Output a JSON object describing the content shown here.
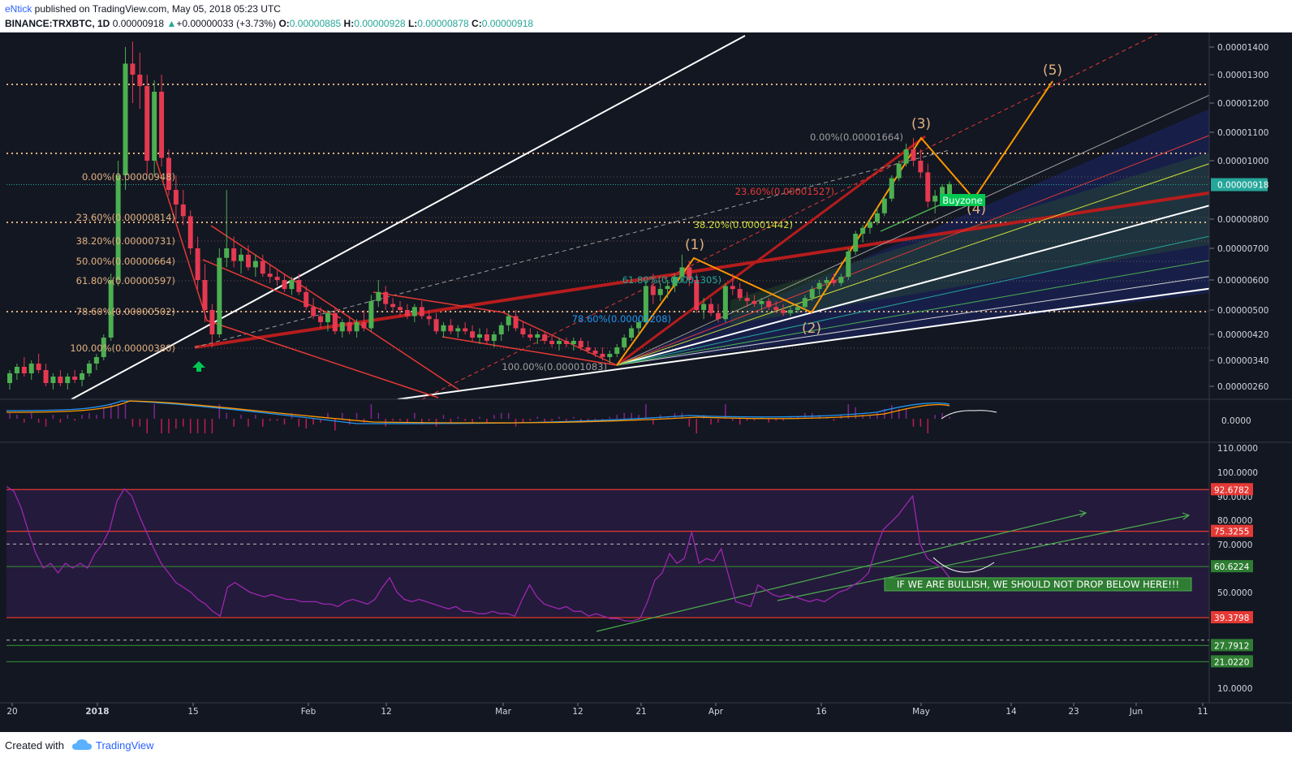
{
  "header": {
    "user": "eNtick",
    "published_text": " published on TradingView.com, May 05, 2018 05:23 UTC",
    "symbol": "BINANCE:TRXBTC, 1D",
    "last_price": "0.00000918",
    "change": "+0.00000033 (+3.73%)",
    "o_label": "O:",
    "o_val": "0.00000885",
    "h_label": "H:",
    "h_val": "0.00000928",
    "l_label": "L:",
    "l_val": "0.00000878",
    "c_label": "C:",
    "c_val": "0.00000918"
  },
  "footer": {
    "created_with": "Created with",
    "brand": "TradingView"
  },
  "chart_data": [
    {
      "type": "candlestick",
      "name": "price",
      "y_axis_ticks": [
        "0.00001400",
        "0.00001300",
        "0.00001200",
        "0.00001100",
        "0.00001000",
        "0.00000800",
        "0.00000700",
        "0.00000600",
        "0.00000500",
        "0.00000420",
        "0.00000340",
        "0.00000260"
      ],
      "current_price_label": "0.00000918",
      "fib_labels_left": [
        "0.00%(0.00000948)",
        "23.60%(0.00000814)",
        "38.20%(0.00000731)",
        "50.00%(0.00000664)",
        "61.80%(0.00000597)",
        "78.60%(0.00000502)",
        "100.00%(0.00000380)"
      ],
      "fib_labels_right": [
        "0.00%(0.00001664)",
        "23.60%(0.00001527)",
        "38.20%(0.00001442)",
        "61.80%(0.00001305)",
        "78.60%(0.00001208)",
        "100.00%(0.00001083)"
      ],
      "wave_labels": [
        "(1)",
        "(2)",
        "(3)",
        "(4)",
        "(5)"
      ],
      "annotations": [
        "Buyzone"
      ],
      "x_axis_ticks": [
        "20",
        "2018",
        "15",
        "Feb",
        "12",
        "Mar",
        "12",
        "21",
        "Apr",
        "16",
        "May",
        "14",
        "23",
        "Jun",
        "11"
      ],
      "candles": [
        {
          "o": 2.7e-06,
          "h": 3.1e-06,
          "l": 2.5e-06,
          "c": 3e-06
        },
        {
          "o": 3e-06,
          "h": 3.3e-06,
          "l": 2.8e-06,
          "c": 3.2e-06
        },
        {
          "o": 3.2e-06,
          "h": 3.5e-06,
          "l": 2.9e-06,
          "c": 3e-06
        },
        {
          "o": 3e-06,
          "h": 3.4e-06,
          "l": 2.8e-06,
          "c": 3.3e-06
        },
        {
          "o": 3.3e-06,
          "h": 3.6e-06,
          "l": 3e-06,
          "c": 3.1e-06
        },
        {
          "o": 3.1e-06,
          "h": 3.3e-06,
          "l": 2.6e-06,
          "c": 2.7e-06
        },
        {
          "o": 2.7e-06,
          "h": 3e-06,
          "l": 2.5e-06,
          "c": 2.9e-06
        },
        {
          "o": 2.9e-06,
          "h": 3.1e-06,
          "l": 2.6e-06,
          "c": 2.7e-06
        },
        {
          "o": 2.7e-06,
          "h": 3e-06,
          "l": 2.5e-06,
          "c": 2.9e-06
        },
        {
          "o": 2.9e-06,
          "h": 3.1e-06,
          "l": 2.7e-06,
          "c": 2.8e-06
        },
        {
          "o": 2.8e-06,
          "h": 3.1e-06,
          "l": 2.6e-06,
          "c": 3e-06
        },
        {
          "o": 3e-06,
          "h": 3.4e-06,
          "l": 2.9e-06,
          "c": 3.3e-06
        },
        {
          "o": 3.3e-06,
          "h": 3.6e-06,
          "l": 3.1e-06,
          "c": 3.5e-06
        },
        {
          "o": 3.5e-06,
          "h": 4.2e-06,
          "l": 3.4e-06,
          "c": 4.1e-06
        },
        {
          "o": 4.1e-06,
          "h": 6.2e-06,
          "l": 4e-06,
          "c": 6e-06
        },
        {
          "o": 6e-06,
          "h": 1e-05,
          "l": 5.8e-06,
          "c": 9.5e-06
        },
        {
          "o": 9.5e-06,
          "h": 1.4e-05,
          "l": 9e-06,
          "c": 1.34e-05
        },
        {
          "o": 1.34e-05,
          "h": 1.42e-05,
          "l": 1.2e-05,
          "c": 1.3e-05
        },
        {
          "o": 1.3e-05,
          "h": 1.38e-05,
          "l": 1.18e-05,
          "c": 1.26e-05
        },
        {
          "o": 1.26e-05,
          "h": 1.3e-05,
          "l": 9.5e-06,
          "c": 1e-05
        },
        {
          "o": 1e-05,
          "h": 1.28e-05,
          "l": 9.5e-06,
          "c": 1.24e-05
        },
        {
          "o": 1.24e-05,
          "h": 1.3e-05,
          "l": 9.8e-06,
          "c": 1.01e-05
        },
        {
          "o": 1.01e-05,
          "h": 1.04e-05,
          "l": 8.8e-06,
          "c": 9e-06
        },
        {
          "o": 9e-06,
          "h": 9.5e-06,
          "l": 8e-06,
          "c": 8.5e-06
        },
        {
          "o": 8.5e-06,
          "h": 9e-06,
          "l": 7.8e-06,
          "c": 8.1e-06
        },
        {
          "o": 8.1e-06,
          "h": 8.3e-06,
          "l": 6.8e-06,
          "c": 7e-06
        },
        {
          "o": 7e-06,
          "h": 7.4e-06,
          "l": 5.7e-06,
          "c": 6e-06
        },
        {
          "o": 6e-06,
          "h": 6.5e-06,
          "l": 4.6e-06,
          "c": 5e-06
        },
        {
          "o": 5e-06,
          "h": 5.2e-06,
          "l": 3.8e-06,
          "c": 4.2e-06
        },
        {
          "o": 4.2e-06,
          "h": 7e-06,
          "l": 4.1e-06,
          "c": 6.7e-06
        },
        {
          "o": 6.7e-06,
          "h": 9e-06,
          "l": 6.4e-06,
          "c": 7e-06
        },
        {
          "o": 7e-06,
          "h": 7.4e-06,
          "l": 6.4e-06,
          "c": 6.6e-06
        },
        {
          "o": 6.6e-06,
          "h": 7e-06,
          "l": 6.2e-06,
          "c": 6.8e-06
        },
        {
          "o": 6.8e-06,
          "h": 7.1e-06,
          "l": 6.3e-06,
          "c": 6.4e-06
        },
        {
          "o": 6.4e-06,
          "h": 6.8e-06,
          "l": 6.1e-06,
          "c": 6.6e-06
        },
        {
          "o": 6.6e-06,
          "h": 6.8e-06,
          "l": 6.1e-06,
          "c": 6.2e-06
        },
        {
          "o": 6.2e-06,
          "h": 6.5e-06,
          "l": 5.9e-06,
          "c": 6.1e-06
        },
        {
          "o": 6.1e-06,
          "h": 6.3e-06,
          "l": 5.8e-06,
          "c": 6e-06
        },
        {
          "o": 6e-06,
          "h": 6.2e-06,
          "l": 5.6e-06,
          "c": 5.7e-06
        },
        {
          "o": 5.7e-06,
          "h": 6.1e-06,
          "l": 5.5e-06,
          "c": 6e-06
        },
        {
          "o": 6e-06,
          "h": 6.2e-06,
          "l": 5.5e-06,
          "c": 5.6e-06
        },
        {
          "o": 5.6e-06,
          "h": 5.8e-06,
          "l": 5e-06,
          "c": 5.1e-06
        },
        {
          "o": 5.1e-06,
          "h": 5.4e-06,
          "l": 4.7e-06,
          "c": 4.8e-06
        },
        {
          "o": 4.8e-06,
          "h": 5.1e-06,
          "l": 4.4e-06,
          "c": 4.6e-06
        },
        {
          "o": 4.6e-06,
          "h": 5e-06,
          "l": 4.3e-06,
          "c": 4.9e-06
        },
        {
          "o": 4.9e-06,
          "h": 5.1e-06,
          "l": 4.2e-06,
          "c": 4.3e-06
        },
        {
          "o": 4.3e-06,
          "h": 4.7e-06,
          "l": 4.1e-06,
          "c": 4.6e-06
        },
        {
          "o": 4.6e-06,
          "h": 4.8e-06,
          "l": 4.2e-06,
          "c": 4.3e-06
        },
        {
          "o": 4.3e-06,
          "h": 4.7e-06,
          "l": 4.1e-06,
          "c": 4.6e-06
        },
        {
          "o": 4.6e-06,
          "h": 5e-06,
          "l": 4.3e-06,
          "c": 4.4e-06
        },
        {
          "o": 4.4e-06,
          "h": 5.5e-06,
          "l": 4.3e-06,
          "c": 5.3e-06
        },
        {
          "o": 5.3e-06,
          "h": 6e-06,
          "l": 5.1e-06,
          "c": 5.6e-06
        },
        {
          "o": 5.6e-06,
          "h": 5.8e-06,
          "l": 5e-06,
          "c": 5.2e-06
        },
        {
          "o": 5.2e-06,
          "h": 5.4e-06,
          "l": 4.9e-06,
          "c": 5.1e-06
        },
        {
          "o": 5.1e-06,
          "h": 5.3e-06,
          "l": 4.8e-06,
          "c": 5e-06
        },
        {
          "o": 5e-06,
          "h": 5.2e-06,
          "l": 4.7e-06,
          "c": 4.8e-06
        },
        {
          "o": 4.8e-06,
          "h": 5.2e-06,
          "l": 4.6e-06,
          "c": 5.1e-06
        },
        {
          "o": 5.1e-06,
          "h": 5.3e-06,
          "l": 4.7e-06,
          "c": 4.8e-06
        },
        {
          "o": 4.8e-06,
          "h": 5e-06,
          "l": 4.5e-06,
          "c": 4.7e-06
        },
        {
          "o": 4.7e-06,
          "h": 4.9e-06,
          "l": 4.2e-06,
          "c": 4.3e-06
        },
        {
          "o": 4.3e-06,
          "h": 4.6e-06,
          "l": 4.1e-06,
          "c": 4.5e-06
        },
        {
          "o": 4.5e-06,
          "h": 4.7e-06,
          "l": 4.2e-06,
          "c": 4.3e-06
        },
        {
          "o": 4.3e-06,
          "h": 4.5e-06,
          "l": 4.1e-06,
          "c": 4.4e-06
        },
        {
          "o": 4.4e-06,
          "h": 4.6e-06,
          "l": 4.2e-06,
          "c": 4.3e-06
        },
        {
          "o": 4.3e-06,
          "h": 4.5e-06,
          "l": 4e-06,
          "c": 4.1e-06
        },
        {
          "o": 4.1e-06,
          "h": 4.4e-06,
          "l": 3.9e-06,
          "c": 4.2e-06
        },
        {
          "o": 4.2e-06,
          "h": 4.4e-06,
          "l": 3.9e-06,
          "c": 4e-06
        },
        {
          "o": 4e-06,
          "h": 4.3e-06,
          "l": 3.8e-06,
          "c": 4.2e-06
        },
        {
          "o": 4.2e-06,
          "h": 4.6e-06,
          "l": 4e-06,
          "c": 4.5e-06
        },
        {
          "o": 4.5e-06,
          "h": 4.9e-06,
          "l": 4.3e-06,
          "c": 4.8e-06
        },
        {
          "o": 4.8e-06,
          "h": 5e-06,
          "l": 4.3e-06,
          "c": 4.4e-06
        },
        {
          "o": 4.4e-06,
          "h": 4.6e-06,
          "l": 4.1e-06,
          "c": 4.2e-06
        },
        {
          "o": 4.2e-06,
          "h": 4.4e-06,
          "l": 4e-06,
          "c": 4.1e-06
        },
        {
          "o": 4.1e-06,
          "h": 4.3e-06,
          "l": 3.9e-06,
          "c": 4.2e-06
        },
        {
          "o": 4.2e-06,
          "h": 4.3e-06,
          "l": 3.9e-06,
          "c": 4e-06
        },
        {
          "o": 4e-06,
          "h": 4.2e-06,
          "l": 3.8e-06,
          "c": 3.9e-06
        },
        {
          "o": 3.9e-06,
          "h": 4.1e-06,
          "l": 3.7e-06,
          "c": 4e-06
        },
        {
          "o": 4e-06,
          "h": 4.1e-06,
          "l": 3.8e-06,
          "c": 3.9e-06
        },
        {
          "o": 3.9e-06,
          "h": 4.1e-06,
          "l": 3.7e-06,
          "c": 4e-06
        },
        {
          "o": 4e-06,
          "h": 4.1e-06,
          "l": 3.7e-06,
          "c": 3.8e-06
        },
        {
          "o": 3.8e-06,
          "h": 4e-06,
          "l": 3.6e-06,
          "c": 3.7e-06
        },
        {
          "o": 3.7e-06,
          "h": 3.8e-06,
          "l": 3.5e-06,
          "c": 3.6e-06
        },
        {
          "o": 3.6e-06,
          "h": 3.8e-06,
          "l": 3.4e-06,
          "c": 3.5e-06
        },
        {
          "o": 3.5e-06,
          "h": 3.7e-06,
          "l": 3.3e-06,
          "c": 3.6e-06
        },
        {
          "o": 3.6e-06,
          "h": 3.9e-06,
          "l": 3.5e-06,
          "c": 3.8e-06
        },
        {
          "o": 3.8e-06,
          "h": 4.2e-06,
          "l": 3.7e-06,
          "c": 4.1e-06
        },
        {
          "o": 4.1e-06,
          "h": 4.5e-06,
          "l": 4e-06,
          "c": 4.4e-06
        },
        {
          "o": 4.4e-06,
          "h": 4.7e-06,
          "l": 4.2e-06,
          "c": 4.6e-06
        },
        {
          "o": 4.6e-06,
          "h": 6e-06,
          "l": 4.5e-06,
          "c": 5.8e-06
        },
        {
          "o": 5.8e-06,
          "h": 6.2e-06,
          "l": 5.2e-06,
          "c": 5.5e-06
        },
        {
          "o": 5.5e-06,
          "h": 5.9e-06,
          "l": 5.3e-06,
          "c": 5.7e-06
        },
        {
          "o": 5.7e-06,
          "h": 6e-06,
          "l": 5.4e-06,
          "c": 5.8e-06
        },
        {
          "o": 5.8e-06,
          "h": 6.2e-06,
          "l": 5.6e-06,
          "c": 6.1e-06
        },
        {
          "o": 6.1e-06,
          "h": 6.8e-06,
          "l": 5.9e-06,
          "c": 6.4e-06
        },
        {
          "o": 6.4e-06,
          "h": 6.6e-06,
          "l": 5.8e-06,
          "c": 6e-06
        },
        {
          "o": 6e-06,
          "h": 6.2e-06,
          "l": 4.9e-06,
          "c": 5e-06
        },
        {
          "o": 5e-06,
          "h": 5.4e-06,
          "l": 4.7e-06,
          "c": 5.2e-06
        },
        {
          "o": 5.2e-06,
          "h": 5.4e-06,
          "l": 4.8e-06,
          "c": 4.9e-06
        },
        {
          "o": 4.9e-06,
          "h": 5.2e-06,
          "l": 4.6e-06,
          "c": 4.7e-06
        },
        {
          "o": 4.7e-06,
          "h": 5.9e-06,
          "l": 4.6e-06,
          "c": 5.8e-06
        },
        {
          "o": 5.8e-06,
          "h": 6.2e-06,
          "l": 5.5e-06,
          "c": 5.7e-06
        },
        {
          "o": 5.7e-06,
          "h": 5.9e-06,
          "l": 5.3e-06,
          "c": 5.4e-06
        },
        {
          "o": 5.4e-06,
          "h": 5.6e-06,
          "l": 5.1e-06,
          "c": 5.3e-06
        },
        {
          "o": 5.3e-06,
          "h": 5.5e-06,
          "l": 5.1e-06,
          "c": 5.2e-06
        },
        {
          "o": 5.2e-06,
          "h": 5.4e-06,
          "l": 5e-06,
          "c": 5.3e-06
        },
        {
          "o": 5.3e-06,
          "h": 5.4e-06,
          "l": 5e-06,
          "c": 5.1e-06
        },
        {
          "o": 5.1e-06,
          "h": 5.3e-06,
          "l": 4.9e-06,
          "c": 5e-06
        },
        {
          "o": 5e-06,
          "h": 5.2e-06,
          "l": 4.8e-06,
          "c": 4.9e-06
        },
        {
          "o": 4.9e-06,
          "h": 5.1e-06,
          "l": 4.8e-06,
          "c": 5e-06
        },
        {
          "o": 5e-06,
          "h": 5.2e-06,
          "l": 4.9e-06,
          "c": 5.1e-06
        },
        {
          "o": 5.1e-06,
          "h": 5.5e-06,
          "l": 5e-06,
          "c": 5.4e-06
        },
        {
          "o": 5.4e-06,
          "h": 5.8e-06,
          "l": 5.3e-06,
          "c": 5.7e-06
        },
        {
          "o": 5.7e-06,
          "h": 6e-06,
          "l": 5.5e-06,
          "c": 5.9e-06
        },
        {
          "o": 5.9e-06,
          "h": 6.1e-06,
          "l": 5.7e-06,
          "c": 6e-06
        },
        {
          "o": 6e-06,
          "h": 6.2e-06,
          "l": 5.8e-06,
          "c": 5.9e-06
        },
        {
          "o": 5.9e-06,
          "h": 6.2e-06,
          "l": 5.8e-06,
          "c": 6.1e-06
        },
        {
          "o": 6.1e-06,
          "h": 7e-06,
          "l": 6e-06,
          "c": 6.9e-06
        },
        {
          "o": 6.9e-06,
          "h": 7.6e-06,
          "l": 6.8e-06,
          "c": 7.5e-06
        },
        {
          "o": 7.5e-06,
          "h": 7.8e-06,
          "l": 7.2e-06,
          "c": 7.7e-06
        },
        {
          "o": 7.7e-06,
          "h": 8e-06,
          "l": 7.5e-06,
          "c": 7.9e-06
        },
        {
          "o": 7.9e-06,
          "h": 8.4e-06,
          "l": 7.8e-06,
          "c": 8.2e-06
        },
        {
          "o": 8.2e-06,
          "h": 8.8e-06,
          "l": 8.1e-06,
          "c": 8.7e-06
        },
        {
          "o": 8.7e-06,
          "h": 9.5e-06,
          "l": 8.6e-06,
          "c": 9.4e-06
        },
        {
          "o": 9.4e-06,
          "h": 1e-05,
          "l": 9.3e-06,
          "c": 9.9e-06
        },
        {
          "o": 9.9e-06,
          "h": 1.06e-05,
          "l": 9.8e-06,
          "c": 1.04e-05
        },
        {
          "o": 1.04e-05,
          "h": 1.08e-05,
          "l": 9.8e-06,
          "c": 1e-05
        },
        {
          "o": 1e-05,
          "h": 1.04e-05,
          "l": 9.4e-06,
          "c": 9.6e-06
        },
        {
          "o": 9.6e-06,
          "h": 9.9e-06,
          "l": 8.4e-06,
          "c": 8.6e-06
        },
        {
          "o": 8.6e-06,
          "h": 9e-06,
          "l": 8.2e-06,
          "c": 8.8e-06
        },
        {
          "o": 8.8e-06,
          "h": 9.2e-06,
          "l": 8.6e-06,
          "c": 9.1e-06
        },
        {
          "o": 8.5e-06,
          "h": 9.3e-06,
          "l": 8.5e-06,
          "c": 9.2e-06
        }
      ]
    },
    {
      "type": "line",
      "name": "macd",
      "y_axis_ticks": [
        "0.0000"
      ]
    },
    {
      "type": "line",
      "name": "rsi",
      "y_axis_ticks": [
        "110.0000",
        "100.0000",
        "90.0000",
        "80.0000",
        "70.0000",
        "50.0000",
        "40.0000",
        "10.0000"
      ],
      "level_labels": [
        {
          "value": 92.6782,
          "label": "92.6782",
          "color": "#e53935"
        },
        {
          "value": 75.3255,
          "label": "75.3255",
          "color": "#e53935"
        },
        {
          "value": 60.6224,
          "label": "60.6224",
          "color": "#2e7d32"
        },
        {
          "value": 39.3798,
          "label": "39.3798",
          "color": "#e53935"
        },
        {
          "value": 27.7912,
          "label": "27.7912",
          "color": "#2e7d32"
        },
        {
          "value": 21.022,
          "label": "21.0220",
          "color": "#2e7d32"
        }
      ],
      "annotation": "IF WE ARE BULLISH, WE SHOULD NOT DROP BELOW HERE!!!",
      "values": [
        94,
        92,
        85,
        75,
        66,
        60,
        62,
        58,
        62,
        60,
        62,
        60,
        66,
        70,
        76,
        88,
        93,
        90,
        82,
        75,
        68,
        62,
        58,
        54,
        52,
        50,
        47,
        45,
        42,
        40,
        52,
        54,
        52,
        50,
        49,
        48,
        49,
        48,
        47,
        47,
        46,
        46,
        46,
        45,
        45,
        44,
        46,
        47,
        46,
        45,
        47,
        52,
        56,
        50,
        47,
        46,
        47,
        46,
        45,
        44,
        43,
        44,
        42,
        42,
        41,
        41,
        42,
        41,
        41,
        40,
        47,
        53,
        48,
        45,
        44,
        43,
        44,
        42,
        42,
        40,
        41,
        40,
        39,
        39,
        38,
        38,
        39,
        46,
        55,
        58,
        66,
        62,
        64,
        75,
        62,
        64,
        63,
        68,
        57,
        46,
        45,
        44,
        53,
        51,
        49,
        48,
        49,
        48,
        47,
        46,
        47,
        46,
        48,
        50,
        51,
        53,
        55,
        58,
        68,
        76,
        79,
        82,
        86,
        90,
        70,
        64,
        62,
        60,
        56
      ]
    }
  ]
}
